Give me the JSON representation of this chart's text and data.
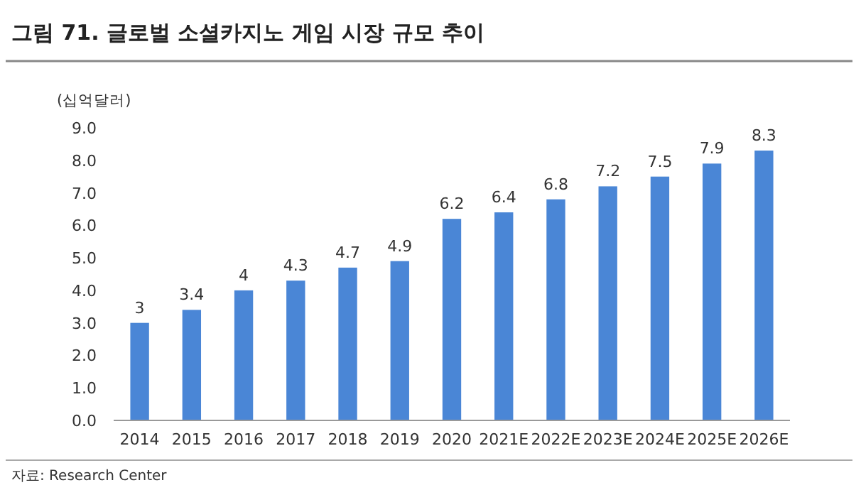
{
  "chart_data": {
    "type": "bar",
    "title": "그림 71. 글로벌 소셜카지노 게임 시장 규모 추이",
    "ylabel": "(십억달러)",
    "categories": [
      "2014",
      "2015",
      "2016",
      "2017",
      "2018",
      "2019",
      "2020",
      "2021E",
      "2022E",
      "2023E",
      "2024E",
      "2025E",
      "2026E"
    ],
    "values": [
      3,
      3.4,
      4,
      4.3,
      4.7,
      4.9,
      6.2,
      6.4,
      6.8,
      7.2,
      7.5,
      7.9,
      8.3
    ],
    "color": "#4a86d6",
    "data_labels": true,
    "ylim": [
      0,
      9
    ],
    "yticks": [
      {
        "value": 0,
        "label": "0.0"
      },
      {
        "value": 1,
        "label": "1.0"
      },
      {
        "value": 2,
        "label": "2.0"
      },
      {
        "value": 3,
        "label": "3.0"
      },
      {
        "value": 4,
        "label": "4.0"
      },
      {
        "value": 5,
        "label": "5.0"
      },
      {
        "value": 6,
        "label": "6.0"
      },
      {
        "value": 7,
        "label": "7.0"
      },
      {
        "value": 8,
        "label": "8.0"
      },
      {
        "value": 9,
        "label": "9.0"
      }
    ],
    "annotations": [
      "자료: Research Center"
    ]
  }
}
